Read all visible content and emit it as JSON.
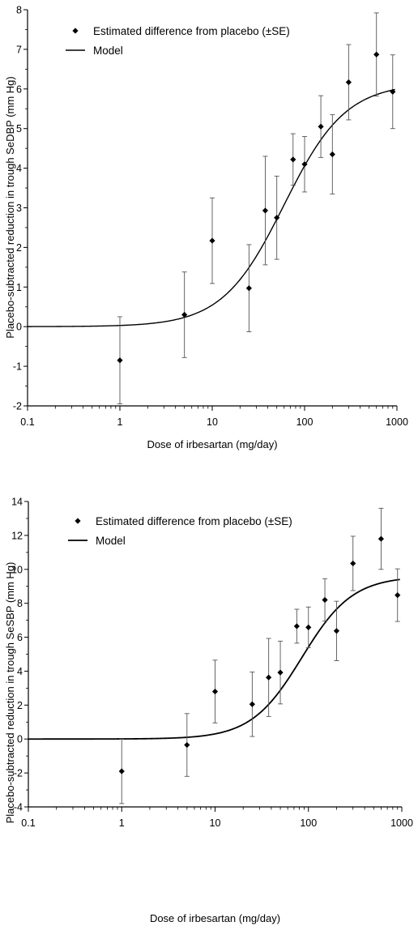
{
  "chart_data": [
    {
      "type": "scatter",
      "xlabel": "Dose of irbesartan (mg/day)",
      "ylabel": "Placebo-subtracted reduction in trough SeDBP (mm Hg)",
      "xscale": "log",
      "xlim": [
        0.1,
        1000
      ],
      "ylim": [
        -2,
        8
      ],
      "xticks": [
        "0.1",
        "1",
        "10",
        "100",
        "1000"
      ],
      "yticks": [
        "-2",
        "-1",
        "0",
        "1",
        "2",
        "3",
        "4",
        "5",
        "6",
        "7",
        "8"
      ],
      "legend": [
        "Estimated difference from placebo (±SE)",
        "Model"
      ],
      "legend_position": "top-left",
      "grid": false,
      "series": [
        {
          "name": "Estimated difference from placebo (±SE)",
          "marker": "diamond",
          "x": [
            1,
            5,
            10,
            25,
            37.5,
            50,
            75,
            100,
            150,
            200,
            300,
            600,
            900
          ],
          "y": [
            -0.85,
            0.3,
            2.17,
            0.97,
            2.93,
            2.75,
            4.22,
            4.1,
            5.05,
            4.35,
            6.17,
            6.87,
            5.93
          ],
          "se": [
            1.1,
            1.08,
            1.08,
            1.1,
            1.37,
            1.05,
            0.65,
            0.7,
            0.78,
            1.0,
            0.95,
            1.05,
            0.93
          ]
        },
        {
          "name": "Model",
          "type": "line",
          "emax": 6.15,
          "ed50": 60,
          "hill": 1.3
        }
      ]
    },
    {
      "type": "scatter",
      "xlabel": "Dose of irbesartan (mg/day)",
      "ylabel": "Placebo-subtracted reduction in trough SeSBP (mm Hg)",
      "xscale": "log",
      "xlim": [
        0.1,
        1000
      ],
      "ylim": [
        -4,
        14
      ],
      "xticks": [
        "0.1",
        "1",
        "10",
        "100",
        "1000"
      ],
      "yticks": [
        "-4",
        "-2",
        "0",
        "2",
        "4",
        "6",
        "8",
        "10",
        "12",
        "14"
      ],
      "legend": [
        "Estimated difference from placebo (±SE)",
        "Model"
      ],
      "legend_position": "top-left",
      "grid": false,
      "series": [
        {
          "name": "Estimated difference from placebo (±SE)",
          "marker": "diamond",
          "x": [
            1,
            5,
            10,
            25,
            37.5,
            50,
            75,
            100,
            150,
            200,
            300,
            600,
            900
          ],
          "y": [
            -1.9,
            -0.35,
            2.8,
            2.05,
            3.63,
            3.92,
            6.65,
            6.58,
            8.2,
            6.37,
            10.35,
            11.8,
            8.48
          ],
          "se": [
            1.9,
            1.85,
            1.85,
            1.9,
            2.3,
            1.85,
            1.0,
            1.2,
            1.25,
            1.75,
            1.6,
            1.8,
            1.55
          ]
        },
        {
          "name": "Model",
          "type": "line",
          "emax": 9.6,
          "ed50": 85,
          "hill": 1.6
        }
      ]
    }
  ]
}
